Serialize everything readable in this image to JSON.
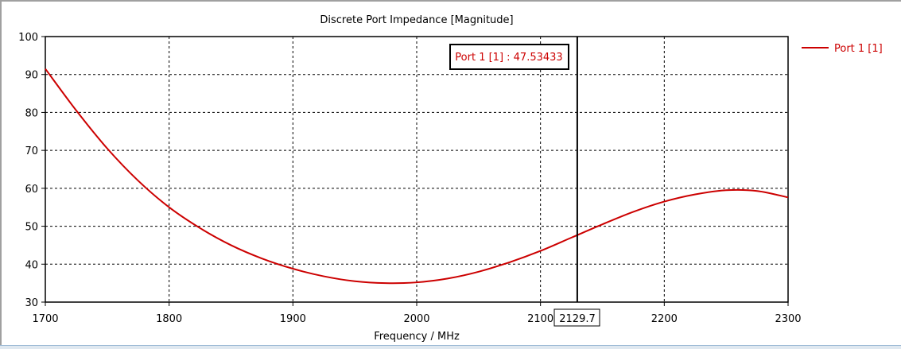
{
  "chart_data": {
    "type": "line",
    "title": "Discrete Port Impedance [Magnitude]",
    "xlabel": "Frequency / MHz",
    "ylabel": "",
    "xlim": [
      1700,
      2300
    ],
    "ylim": [
      30,
      100
    ],
    "xticks": [
      1700,
      1800,
      1900,
      2000,
      2100,
      2200,
      2300
    ],
    "yticks": [
      30,
      40,
      50,
      60,
      70,
      80,
      90,
      100
    ],
    "grid": true,
    "legend": {
      "position": "right",
      "entries": [
        "Port 1 [1]"
      ]
    },
    "series": [
      {
        "name": "Port 1 [1]",
        "color": "#cc0000",
        "x": [
          1700,
          1725,
          1750,
          1775,
          1800,
          1825,
          1850,
          1875,
          1900,
          1925,
          1950,
          1975,
          2000,
          2025,
          2050,
          2075,
          2100,
          2125,
          2150,
          2175,
          2200,
          2225,
          2250,
          2275,
          2300
        ],
        "y": [
          91.5,
          80.5,
          70.5,
          62,
          55,
          49.5,
          45,
          41.5,
          38.8,
          36.8,
          35.5,
          35,
          35.2,
          36.2,
          38,
          40.5,
          43.5,
          47,
          50.5,
          53.8,
          56.5,
          58.4,
          59.5,
          59.3,
          57.6
        ]
      }
    ],
    "marker": {
      "x": 2129.7,
      "x_label": "2129.7",
      "annotation": "Port 1 [1] : 47.53433"
    }
  }
}
